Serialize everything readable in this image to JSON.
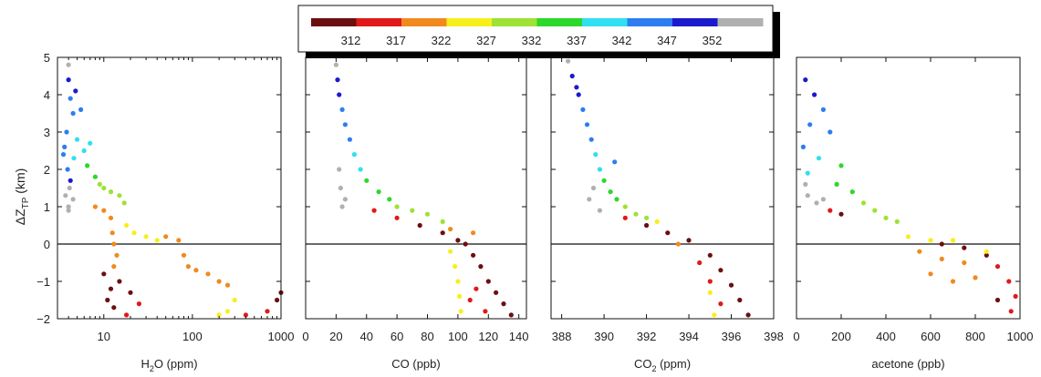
{
  "figure": {
    "ylabel_main": "ΔZ",
    "ylabel_sub": "TP",
    "ylabel_unit": " (km)"
  },
  "colorbar": {
    "ticks": [
      "312",
      "317",
      "322",
      "327",
      "332",
      "337",
      "342",
      "347",
      "352"
    ],
    "colors": [
      "#6b0f0f",
      "#e0191b",
      "#f08a1e",
      "#f7ef1a",
      "#9ee234",
      "#2cd82c",
      "#2fe0f0",
      "#2c7ef0",
      "#1a1acc",
      "#b0b0b0"
    ]
  },
  "chart_data": [
    {
      "type": "scatter",
      "xscale": "log",
      "xlim": [
        3,
        1000
      ],
      "ylim": [
        -2,
        5
      ],
      "xticks": [
        "10",
        "100",
        "1000"
      ],
      "yticks": [
        "5",
        "4",
        "3",
        "2",
        "1",
        "0",
        "−1",
        "−2"
      ],
      "xlabel_main": "H",
      "xlabel_sub": "2",
      "xlabel_rest": "O (ppm)",
      "points": [
        [
          4,
          4.4,
          8
        ],
        [
          4.2,
          3.9,
          7
        ],
        [
          4.5,
          3.5,
          7
        ],
        [
          3.8,
          3,
          7
        ],
        [
          3.6,
          2.6,
          7
        ],
        [
          4.6,
          2.3,
          6
        ],
        [
          3.9,
          2,
          7
        ],
        [
          4.2,
          1.7,
          8
        ],
        [
          3.7,
          1.3,
          9
        ],
        [
          4,
          1,
          9
        ],
        [
          4.5,
          1.2,
          9
        ],
        [
          5,
          2.8,
          6
        ],
        [
          6,
          2.5,
          6
        ],
        [
          7,
          2.7,
          6
        ],
        [
          6.5,
          2.1,
          5
        ],
        [
          8,
          1.8,
          5
        ],
        [
          9,
          1.6,
          4
        ],
        [
          10,
          1.5,
          4
        ],
        [
          12,
          1.4,
          4
        ],
        [
          15,
          1.3,
          4
        ],
        [
          17,
          1.1,
          4
        ],
        [
          8,
          1,
          2
        ],
        [
          10,
          0.9,
          2
        ],
        [
          12,
          0.7,
          2
        ],
        [
          12.5,
          0.3,
          2
        ],
        [
          13,
          0,
          2
        ],
        [
          14,
          -0.3,
          2
        ],
        [
          13,
          -0.6,
          2
        ],
        [
          18,
          0.5,
          3
        ],
        [
          22,
          0.3,
          3
        ],
        [
          30,
          0.2,
          3
        ],
        [
          40,
          0.1,
          3
        ],
        [
          50,
          0.2,
          2
        ],
        [
          70,
          0.1,
          2
        ],
        [
          10,
          -0.8,
          0
        ],
        [
          12,
          -1.2,
          0
        ],
        [
          11,
          -1.5,
          0
        ],
        [
          13,
          -1.7,
          0
        ],
        [
          15,
          -1,
          0
        ],
        [
          20,
          -1.3,
          0
        ],
        [
          25,
          -1.6,
          1
        ],
        [
          18,
          -1.9,
          1
        ],
        [
          80,
          -0.3,
          2
        ],
        [
          90,
          -0.6,
          2
        ],
        [
          110,
          -0.7,
          2
        ],
        [
          150,
          -0.8,
          2
        ],
        [
          200,
          -1,
          2
        ],
        [
          250,
          -1.1,
          2
        ],
        [
          300,
          -1.5,
          3
        ],
        [
          250,
          -1.8,
          3
        ],
        [
          200,
          -1.9,
          3
        ],
        [
          400,
          -1.9,
          1
        ],
        [
          700,
          -1.8,
          1
        ],
        [
          900,
          -1.5,
          0
        ],
        [
          1000,
          -1.3,
          0
        ],
        [
          4,
          0.9,
          9
        ],
        [
          4.1,
          1.5,
          9
        ],
        [
          3.5,
          2.4,
          7
        ],
        [
          5.5,
          3.6,
          7
        ],
        [
          4.8,
          4.1,
          8
        ],
        [
          4,
          4.8,
          9
        ]
      ]
    },
    {
      "type": "scatter",
      "xscale": "linear",
      "xlim": [
        0,
        145
      ],
      "ylim": [
        -2,
        5
      ],
      "xticks": [
        "0",
        "20",
        "40",
        "60",
        "80",
        "100",
        "120",
        "140"
      ],
      "xlabel_main": "CO (ppb)",
      "xlabel_sub": "",
      "xlabel_rest": "",
      "points": [
        [
          20,
          4.8,
          9
        ],
        [
          21,
          4.4,
          8
        ],
        [
          22,
          4,
          8
        ],
        [
          24,
          3.6,
          7
        ],
        [
          26,
          3.2,
          7
        ],
        [
          29,
          2.8,
          7
        ],
        [
          32,
          2.4,
          6
        ],
        [
          36,
          2,
          6
        ],
        [
          40,
          1.7,
          5
        ],
        [
          48,
          1.4,
          5
        ],
        [
          55,
          1.2,
          5
        ],
        [
          60,
          1,
          4
        ],
        [
          70,
          0.9,
          4
        ],
        [
          80,
          0.8,
          4
        ],
        [
          90,
          0.6,
          4
        ],
        [
          22,
          2,
          9
        ],
        [
          23,
          1.5,
          9
        ],
        [
          24,
          1,
          9
        ],
        [
          26,
          1.2,
          9
        ],
        [
          45,
          0.9,
          1
        ],
        [
          60,
          0.7,
          1
        ],
        [
          75,
          0.5,
          0
        ],
        [
          90,
          0.3,
          0
        ],
        [
          100,
          0.1,
          0
        ],
        [
          105,
          0,
          0
        ],
        [
          110,
          -0.3,
          0
        ],
        [
          115,
          -0.6,
          0
        ],
        [
          120,
          -1,
          0
        ],
        [
          125,
          -1.3,
          0
        ],
        [
          130,
          -1.6,
          0
        ],
        [
          135,
          -1.9,
          0
        ],
        [
          95,
          -0.2,
          3
        ],
        [
          98,
          -0.6,
          3
        ],
        [
          100,
          -1,
          3
        ],
        [
          101,
          -1.4,
          3
        ],
        [
          102,
          -1.8,
          3
        ],
        [
          108,
          -1.5,
          1
        ],
        [
          112,
          -1.2,
          1
        ],
        [
          118,
          -1.8,
          1
        ],
        [
          110,
          0.3,
          2
        ],
        [
          95,
          0.4,
          2
        ]
      ]
    },
    {
      "type": "scatter",
      "xscale": "linear",
      "xlim": [
        387.5,
        398
      ],
      "ylim": [
        -2,
        5
      ],
      "xticks": [
        "388",
        "390",
        "392",
        "394",
        "396",
        "398"
      ],
      "xlabel_main": "CO",
      "xlabel_sub": "2",
      "xlabel_rest": " (ppm)",
      "points": [
        [
          388.3,
          4.9,
          9
        ],
        [
          388.5,
          4.5,
          8
        ],
        [
          388.8,
          4,
          8
        ],
        [
          389,
          3.6,
          7
        ],
        [
          389.2,
          3.2,
          7
        ],
        [
          389.4,
          2.8,
          7
        ],
        [
          389.6,
          2.4,
          6
        ],
        [
          389.8,
          2,
          6
        ],
        [
          390,
          1.7,
          5
        ],
        [
          390.3,
          1.4,
          5
        ],
        [
          390.6,
          1.2,
          5
        ],
        [
          391,
          1,
          4
        ],
        [
          391.5,
          0.8,
          4
        ],
        [
          392,
          0.7,
          4
        ],
        [
          392.5,
          0.6,
          3
        ],
        [
          389.5,
          1.5,
          9
        ],
        [
          389.3,
          1.2,
          9
        ],
        [
          389.8,
          0.9,
          9
        ],
        [
          391,
          0.7,
          1
        ],
        [
          392,
          0.5,
          0
        ],
        [
          393,
          0.3,
          0
        ],
        [
          394,
          0.1,
          0
        ],
        [
          395,
          -0.3,
          0
        ],
        [
          395.5,
          -0.7,
          0
        ],
        [
          396,
          -1.1,
          0
        ],
        [
          396.4,
          -1.5,
          0
        ],
        [
          396.8,
          -1.9,
          0
        ],
        [
          394.5,
          -0.5,
          1
        ],
        [
          395,
          -1,
          1
        ],
        [
          395.5,
          -1.6,
          1
        ],
        [
          395.2,
          -1.9,
          3
        ],
        [
          395,
          -1.3,
          3
        ],
        [
          393.5,
          0,
          2
        ],
        [
          390.5,
          2.2,
          7
        ],
        [
          388.7,
          4.2,
          8
        ]
      ]
    },
    {
      "type": "scatter",
      "xscale": "linear",
      "xlim": [
        0,
        1000
      ],
      "ylim": [
        -2,
        5
      ],
      "xticks": [
        "0",
        "200",
        "400",
        "600",
        "800",
        "1000"
      ],
      "xlabel_main": "acetone (ppb)",
      "xlabel_sub": "",
      "xlabel_rest": "",
      "points": [
        [
          40,
          4.4,
          8
        ],
        [
          80,
          4,
          8
        ],
        [
          120,
          3.6,
          7
        ],
        [
          60,
          3.2,
          7
        ],
        [
          150,
          3,
          7
        ],
        [
          30,
          2.6,
          7
        ],
        [
          100,
          2.3,
          6
        ],
        [
          200,
          2.1,
          5
        ],
        [
          50,
          1.9,
          6
        ],
        [
          180,
          1.6,
          5
        ],
        [
          250,
          1.4,
          5
        ],
        [
          50,
          1.3,
          9
        ],
        [
          90,
          1.1,
          9
        ],
        [
          40,
          1.6,
          9
        ],
        [
          120,
          1.2,
          9
        ],
        [
          300,
          1.1,
          4
        ],
        [
          350,
          0.9,
          4
        ],
        [
          400,
          0.7,
          4
        ],
        [
          450,
          0.6,
          4
        ],
        [
          150,
          0.9,
          1
        ],
        [
          200,
          0.8,
          0
        ],
        [
          500,
          0.2,
          3
        ],
        [
          600,
          0.1,
          3
        ],
        [
          700,
          0.1,
          3
        ],
        [
          550,
          -0.2,
          2
        ],
        [
          650,
          -0.4,
          2
        ],
        [
          750,
          -0.5,
          2
        ],
        [
          600,
          -0.8,
          2
        ],
        [
          700,
          -1,
          2
        ],
        [
          800,
          -0.9,
          2
        ],
        [
          650,
          0,
          0
        ],
        [
          750,
          -0.1,
          0
        ],
        [
          850,
          -0.3,
          0
        ],
        [
          900,
          -0.6,
          1
        ],
        [
          950,
          -1,
          1
        ],
        [
          980,
          -1.4,
          1
        ],
        [
          960,
          -1.8,
          1
        ],
        [
          900,
          -1.5,
          0
        ],
        [
          850,
          -0.2,
          3
        ]
      ]
    }
  ]
}
